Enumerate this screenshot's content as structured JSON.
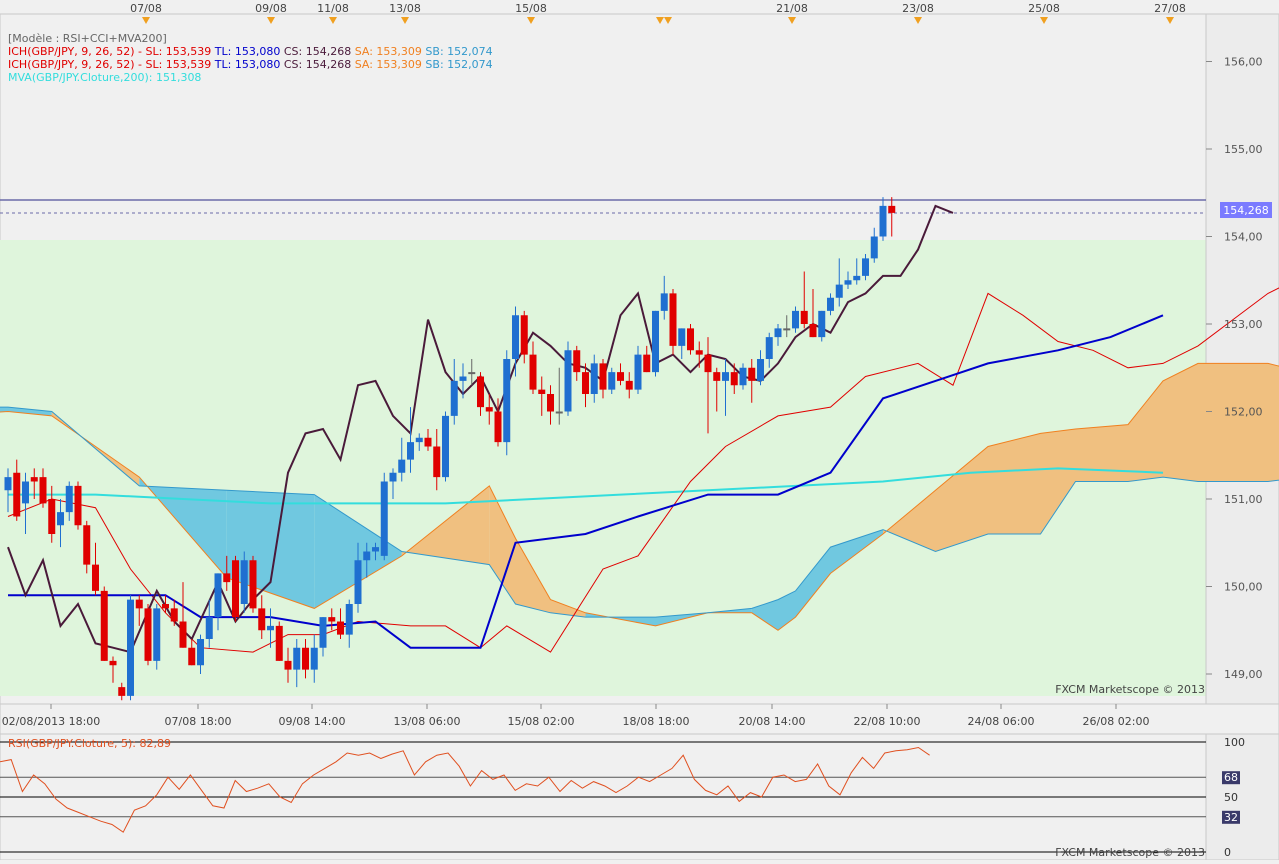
{
  "top_dates": [
    "07/08",
    "09/08",
    "11/08",
    "13/08",
    "15/08",
    "21/08",
    "23/08",
    "25/08",
    "27/08"
  ],
  "bottom_dates": [
    "02/08/2013 18:00",
    "07/08 18:00",
    "09/08 14:00",
    "13/08 06:00",
    "15/08 02:00",
    "18/08 18:00",
    "20/08 14:00",
    "22/08 10:00",
    "24/08 06:00",
    "26/08 02:00"
  ],
  "legend": [
    {
      "prefix": "[Modèle : RSI+CCI+MVA200]",
      "color": "#666666",
      "parts": []
    },
    {
      "prefix": "ICH(GBP/JPY, 9, 26, 52) -",
      "color": "#e00000",
      "parts": [
        {
          "text": "SL: 153,539",
          "color": "#e00000"
        },
        {
          "text": "TL: 153,080",
          "color": "#0000cc"
        },
        {
          "text": "CS: 154,268",
          "color": "#4a1a3a"
        },
        {
          "text": "SA: 153,309",
          "color": "#f08020"
        },
        {
          "text": "SB: 152,074",
          "color": "#3399cc"
        }
      ]
    },
    {
      "prefix": "ICH(GBP/JPY, 9, 26, 52) -",
      "color": "#e00000",
      "parts": [
        {
          "text": "SL: 153,539",
          "color": "#e00000"
        },
        {
          "text": "TL: 153,080",
          "color": "#0000cc"
        },
        {
          "text": "CS: 154,268",
          "color": "#4a1a3a"
        },
        {
          "text": "SA: 153,309",
          "color": "#f08020"
        },
        {
          "text": "SB: 152,074",
          "color": "#3399cc"
        }
      ]
    },
    {
      "prefix": "MVA(GBP/JPY.Cloture,200): 151,308",
      "color": "#33dddd",
      "parts": []
    }
  ],
  "price_label": "154,268",
  "watermark": "FXCM Marketscope © 2013",
  "rsi_title": "RSI(GBP/JPY.Cloture, 5): 82,89",
  "chart_data": {
    "type": "candlestick",
    "y_ticks": [
      "156,00",
      "155,00",
      "154,00",
      "153,00",
      "152,00",
      "151,00",
      "150,00",
      "149,00"
    ],
    "rsi_ticks": [
      "100",
      "68",
      "50",
      "32",
      "0"
    ],
    "current_price": 154.268,
    "colors": {
      "up": "#1f6fd0",
      "down": "#e00000",
      "doji": "#666666",
      "tenkan": "#e00000",
      "kijun": "#0000cc",
      "chikou": "#4a1a3a",
      "mva": "#33dddd",
      "cloud_bull": "#f0c080",
      "cloud_bear": "#70c8e0"
    },
    "candles": [
      [
        151.1,
        151.35,
        150.85,
        151.25
      ],
      [
        151.3,
        151.45,
        150.75,
        150.8
      ],
      [
        150.95,
        151.3,
        150.6,
        151.2
      ],
      [
        151.25,
        151.35,
        151.0,
        151.2
      ],
      [
        151.25,
        151.35,
        150.9,
        150.95
      ],
      [
        151.0,
        151.15,
        150.5,
        150.6
      ],
      [
        150.7,
        151.0,
        150.45,
        150.85
      ],
      [
        150.85,
        151.2,
        150.75,
        151.15
      ],
      [
        151.15,
        151.2,
        150.65,
        150.7
      ],
      [
        150.7,
        150.75,
        150.15,
        150.25
      ],
      [
        150.25,
        150.5,
        149.9,
        149.95
      ],
      [
        149.95,
        150.0,
        149.15,
        149.15
      ],
      [
        149.15,
        149.2,
        148.9,
        149.1
      ],
      [
        148.85,
        148.9,
        148.7,
        148.75
      ],
      [
        148.75,
        149.9,
        148.7,
        149.85
      ],
      [
        149.85,
        149.9,
        149.55,
        149.75
      ],
      [
        149.75,
        149.8,
        149.1,
        149.15
      ],
      [
        149.15,
        149.8,
        149.05,
        149.75
      ],
      [
        149.8,
        149.9,
        149.7,
        149.75
      ],
      [
        149.75,
        149.85,
        149.55,
        149.6
      ],
      [
        149.6,
        150.05,
        149.3,
        149.3
      ],
      [
        149.3,
        149.4,
        149.1,
        149.1
      ],
      [
        149.1,
        149.45,
        149.0,
        149.4
      ],
      [
        149.4,
        149.85,
        149.3,
        149.65
      ],
      [
        149.65,
        150.15,
        149.5,
        150.15
      ],
      [
        150.15,
        150.35,
        149.95,
        150.05
      ],
      [
        150.3,
        150.35,
        149.6,
        149.65
      ],
      [
        149.8,
        150.4,
        149.7,
        150.3
      ],
      [
        150.3,
        150.35,
        149.7,
        149.75
      ],
      [
        149.75,
        149.9,
        149.4,
        149.5
      ],
      [
        149.5,
        149.75,
        149.3,
        149.55
      ],
      [
        149.55,
        149.6,
        149.15,
        149.15
      ],
      [
        149.15,
        149.3,
        148.9,
        149.05
      ],
      [
        149.05,
        149.4,
        148.85,
        149.3
      ],
      [
        149.3,
        149.4,
        148.95,
        149.05
      ],
      [
        149.05,
        149.45,
        148.9,
        149.3
      ],
      [
        149.3,
        149.65,
        149.2,
        149.65
      ],
      [
        149.65,
        149.75,
        149.5,
        149.6
      ],
      [
        149.6,
        149.75,
        149.4,
        149.45
      ],
      [
        149.45,
        149.85,
        149.3,
        149.8
      ],
      [
        149.8,
        150.5,
        149.7,
        150.3
      ],
      [
        150.3,
        150.5,
        150.1,
        150.4
      ],
      [
        150.4,
        150.5,
        150.3,
        150.45
      ],
      [
        150.35,
        151.3,
        150.3,
        151.2
      ],
      [
        151.2,
        151.35,
        151.0,
        151.3
      ],
      [
        151.3,
        151.7,
        151.2,
        151.45
      ],
      [
        151.45,
        152.05,
        151.3,
        151.65
      ],
      [
        151.65,
        151.75,
        151.55,
        151.7
      ],
      [
        151.7,
        151.8,
        151.55,
        151.6
      ],
      [
        151.6,
        151.8,
        151.1,
        151.25
      ],
      [
        151.25,
        152.0,
        151.2,
        151.95
      ],
      [
        151.95,
        152.6,
        151.85,
        152.35
      ],
      [
        152.35,
        152.55,
        152.15,
        152.4
      ],
      [
        152.45,
        152.6,
        152.3,
        152.45
      ],
      [
        152.4,
        152.45,
        151.95,
        152.05
      ],
      [
        152.05,
        152.2,
        151.85,
        152.0
      ],
      [
        152.0,
        152.15,
        151.6,
        151.65
      ],
      [
        151.65,
        152.7,
        151.5,
        152.6
      ],
      [
        152.6,
        153.2,
        152.4,
        153.1
      ],
      [
        153.1,
        153.15,
        152.55,
        152.65
      ],
      [
        152.65,
        152.8,
        152.2,
        152.25
      ],
      [
        152.25,
        152.4,
        151.95,
        152.2
      ],
      [
        152.2,
        152.3,
        151.85,
        152.0
      ],
      [
        152.0,
        152.5,
        151.85,
        152.0
      ],
      [
        152.0,
        152.8,
        151.95,
        152.7
      ],
      [
        152.7,
        152.75,
        152.35,
        152.45
      ],
      [
        152.45,
        152.55,
        152.05,
        152.2
      ],
      [
        152.2,
        152.65,
        152.1,
        152.55
      ],
      [
        152.55,
        152.6,
        152.15,
        152.25
      ],
      [
        152.25,
        152.5,
        152.2,
        152.45
      ],
      [
        152.45,
        152.55,
        152.3,
        152.35
      ],
      [
        152.35,
        152.45,
        152.15,
        152.25
      ],
      [
        152.25,
        152.75,
        152.2,
        152.65
      ],
      [
        152.65,
        152.75,
        152.45,
        152.45
      ],
      [
        152.45,
        153.15,
        152.4,
        153.15
      ],
      [
        153.15,
        153.55,
        153.05,
        153.35
      ],
      [
        153.35,
        153.4,
        152.65,
        152.75
      ],
      [
        152.75,
        152.95,
        152.6,
        152.95
      ],
      [
        152.95,
        153.0,
        152.65,
        152.7
      ],
      [
        152.7,
        152.8,
        152.5,
        152.65
      ],
      [
        152.65,
        152.85,
        151.75,
        152.45
      ],
      [
        152.45,
        152.5,
        152.0,
        152.35
      ],
      [
        152.35,
        152.6,
        151.95,
        152.45
      ],
      [
        152.45,
        152.55,
        152.2,
        152.3
      ],
      [
        152.3,
        152.55,
        152.25,
        152.5
      ],
      [
        152.5,
        152.6,
        152.1,
        152.35
      ],
      [
        152.35,
        152.7,
        152.3,
        152.6
      ],
      [
        152.6,
        152.9,
        152.5,
        152.85
      ],
      [
        152.85,
        153.0,
        152.75,
        152.95
      ],
      [
        152.95,
        153.1,
        152.85,
        152.95
      ],
      [
        152.95,
        153.2,
        152.9,
        153.15
      ],
      [
        153.15,
        153.6,
        152.95,
        153.0
      ],
      [
        153.0,
        153.4,
        152.85,
        152.85
      ],
      [
        152.85,
        153.15,
        152.8,
        153.15
      ],
      [
        153.15,
        153.35,
        153.1,
        153.3
      ],
      [
        153.3,
        153.75,
        153.2,
        153.45
      ],
      [
        153.45,
        153.6,
        153.4,
        153.5
      ],
      [
        153.5,
        153.75,
        153.45,
        153.55
      ],
      [
        153.55,
        153.8,
        153.5,
        153.75
      ],
      [
        153.75,
        154.1,
        153.7,
        154.0
      ],
      [
        154.0,
        154.45,
        153.95,
        154.35
      ],
      [
        154.35,
        154.45,
        154.0,
        154.27
      ]
    ],
    "chikou_line": [
      [
        0,
        150.45
      ],
      [
        2,
        149.9
      ],
      [
        4,
        150.3
      ],
      [
        6,
        149.55
      ],
      [
        8,
        149.8
      ],
      [
        10,
        149.35
      ],
      [
        12,
        149.3
      ],
      [
        14,
        149.25
      ],
      [
        17,
        149.95
      ],
      [
        19,
        149.6
      ],
      [
        21,
        149.4
      ],
      [
        24,
        150.05
      ],
      [
        26,
        149.6
      ],
      [
        28,
        149.85
      ],
      [
        30,
        150.05
      ],
      [
        32,
        151.3
      ],
      [
        34,
        151.75
      ],
      [
        36,
        151.8
      ],
      [
        38,
        151.45
      ],
      [
        40,
        152.3
      ],
      [
        42,
        152.35
      ],
      [
        44,
        151.95
      ],
      [
        46,
        151.75
      ],
      [
        48,
        153.05
      ],
      [
        50,
        152.45
      ],
      [
        52,
        152.2
      ],
      [
        54,
        152.4
      ],
      [
        56,
        152.0
      ],
      [
        58,
        152.55
      ],
      [
        60,
        152.9
      ],
      [
        62,
        152.75
      ],
      [
        64,
        152.55
      ],
      [
        66,
        152.5
      ],
      [
        68,
        152.35
      ],
      [
        70,
        153.1
      ],
      [
        72,
        153.35
      ],
      [
        74,
        152.55
      ],
      [
        76,
        152.65
      ],
      [
        78,
        152.45
      ],
      [
        80,
        152.65
      ],
      [
        82,
        152.6
      ],
      [
        84,
        152.4
      ],
      [
        86,
        152.35
      ],
      [
        88,
        152.55
      ],
      [
        90,
        152.85
      ],
      [
        92,
        153.0
      ],
      [
        94,
        152.9
      ],
      [
        96,
        153.25
      ],
      [
        98,
        153.35
      ],
      [
        100,
        153.55
      ],
      [
        102,
        153.55
      ],
      [
        104,
        153.85
      ],
      [
        106,
        154.35
      ],
      [
        108,
        154.27
      ]
    ],
    "chikou_x_offset": -26,
    "tenkan_line": [
      [
        0,
        150.8
      ],
      [
        5,
        151.0
      ],
      [
        10,
        150.9
      ],
      [
        14,
        150.2
      ],
      [
        18,
        149.7
      ],
      [
        22,
        149.3
      ],
      [
        28,
        149.25
      ],
      [
        32,
        149.45
      ],
      [
        36,
        149.45
      ],
      [
        40,
        149.6
      ],
      [
        46,
        149.55
      ],
      [
        50,
        149.55
      ],
      [
        54,
        149.3
      ],
      [
        57,
        149.55
      ],
      [
        62,
        149.25
      ],
      [
        68,
        150.2
      ],
      [
        72,
        150.35
      ],
      [
        78,
        151.2
      ],
      [
        82,
        151.6
      ],
      [
        88,
        151.95
      ],
      [
        94,
        152.05
      ],
      [
        98,
        152.4
      ],
      [
        104,
        152.55
      ],
      [
        108,
        152.3
      ],
      [
        112,
        153.35
      ],
      [
        116,
        153.1
      ],
      [
        120,
        152.8
      ],
      [
        124,
        152.7
      ],
      [
        128,
        152.5
      ],
      [
        132,
        152.55
      ],
      [
        136,
        152.75
      ],
      [
        140,
        153.05
      ],
      [
        144,
        153.35
      ],
      [
        148,
        153.55
      ]
    ],
    "kijun_line": [
      [
        0,
        149.9
      ],
      [
        10,
        149.9
      ],
      [
        18,
        149.9
      ],
      [
        22,
        149.65
      ],
      [
        30,
        149.65
      ],
      [
        36,
        149.55
      ],
      [
        42,
        149.6
      ],
      [
        46,
        149.3
      ],
      [
        54,
        149.3
      ],
      [
        58,
        150.5
      ],
      [
        66,
        150.6
      ],
      [
        72,
        150.8
      ],
      [
        80,
        151.05
      ],
      [
        88,
        151.05
      ],
      [
        94,
        151.3
      ],
      [
        100,
        152.15
      ],
      [
        106,
        152.35
      ],
      [
        112,
        152.55
      ],
      [
        120,
        152.7
      ],
      [
        126,
        152.85
      ],
      [
        132,
        153.1
      ]
    ],
    "mva_line": [
      [
        0,
        151.05
      ],
      [
        10,
        151.05
      ],
      [
        20,
        151.0
      ],
      [
        30,
        150.95
      ],
      [
        40,
        150.95
      ],
      [
        50,
        150.95
      ],
      [
        60,
        151.0
      ],
      [
        70,
        151.05
      ],
      [
        80,
        151.1
      ],
      [
        90,
        151.15
      ],
      [
        100,
        151.2
      ],
      [
        110,
        151.3
      ],
      [
        120,
        151.35
      ],
      [
        132,
        151.3
      ]
    ],
    "senkou_a": [
      [
        -8,
        151.95
      ],
      [
        0,
        152.0
      ],
      [
        5,
        151.95
      ],
      [
        15,
        151.25
      ],
      [
        25,
        150.1
      ],
      [
        35,
        149.75
      ],
      [
        45,
        150.35
      ],
      [
        55,
        151.15
      ],
      [
        58,
        150.55
      ],
      [
        62,
        149.85
      ],
      [
        66,
        149.7
      ],
      [
        74,
        149.55
      ],
      [
        80,
        149.7
      ],
      [
        85,
        149.7
      ],
      [
        88,
        149.5
      ],
      [
        90,
        149.65
      ],
      [
        94,
        150.15
      ],
      [
        100,
        150.6
      ],
      [
        106,
        151.1
      ],
      [
        112,
        151.6
      ],
      [
        118,
        151.75
      ],
      [
        122,
        151.8
      ],
      [
        128,
        151.85
      ],
      [
        132,
        152.35
      ],
      [
        136,
        152.55
      ],
      [
        140,
        152.55
      ],
      [
        144,
        152.55
      ],
      [
        148,
        152.45
      ],
      [
        152,
        152.7
      ],
      [
        156,
        152.85
      ],
      [
        160,
        153.0
      ],
      [
        164,
        153.35
      ]
    ],
    "senkou_b": [
      [
        -8,
        152.05
      ],
      [
        0,
        152.05
      ],
      [
        5,
        152.0
      ],
      [
        15,
        151.15
      ],
      [
        25,
        151.1
      ],
      [
        35,
        151.05
      ],
      [
        45,
        150.4
      ],
      [
        55,
        150.25
      ],
      [
        58,
        149.8
      ],
      [
        62,
        149.7
      ],
      [
        66,
        149.65
      ],
      [
        74,
        149.65
      ],
      [
        80,
        149.7
      ],
      [
        85,
        149.75
      ],
      [
        88,
        149.85
      ],
      [
        90,
        149.95
      ],
      [
        94,
        150.45
      ],
      [
        100,
        150.65
      ],
      [
        106,
        150.4
      ],
      [
        112,
        150.6
      ],
      [
        118,
        150.6
      ],
      [
        122,
        151.2
      ],
      [
        128,
        151.2
      ],
      [
        132,
        151.25
      ],
      [
        136,
        151.2
      ],
      [
        140,
        151.2
      ],
      [
        144,
        151.2
      ],
      [
        148,
        151.25
      ],
      [
        152,
        151.25
      ],
      [
        156,
        151.55
      ],
      [
        160,
        151.8
      ],
      [
        164,
        152.0
      ]
    ],
    "rsi": [
      82.0,
      84.0,
      55.0,
      70.0,
      62.0,
      48.0,
      40.0,
      36.0,
      32.0,
      28.0,
      25.0,
      18.0,
      38.0,
      42.0,
      52.0,
      68.0,
      57.0,
      70.0,
      56.0,
      42.0,
      40.0,
      65.0,
      55.0,
      58.0,
      62.0,
      50.0,
      45.0,
      62.0,
      70.0,
      76.0,
      82.0,
      90.0,
      88.0,
      90.0,
      85.0,
      89.0,
      92.0,
      70.0,
      82.0,
      88.0,
      90.0,
      78.0,
      60.0,
      74.0,
      66.0,
      70.0,
      56.0,
      62.0,
      60.0,
      68.0,
      55.0,
      65.0,
      58.0,
      64.0,
      60.0,
      54.0,
      60.0,
      68.0,
      64.0,
      70.0,
      76.0,
      88.0,
      66.0,
      56.0,
      52.0,
      60.0,
      46.0,
      54.0,
      50.0,
      68.0,
      70.0,
      64.0,
      66.0,
      80.0,
      60.0,
      52.0,
      72.0,
      86.0,
      76.0,
      90.0,
      92.0,
      93.0,
      95.0,
      88.0
    ]
  }
}
